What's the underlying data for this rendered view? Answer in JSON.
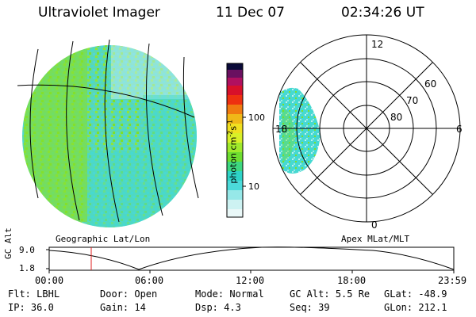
{
  "header": {
    "instrument": "Ultraviolet Imager",
    "date": "11 Dec 07",
    "time": "02:34:26 UT"
  },
  "colorbar": {
    "unit_label": "photon cm",
    "unit_sup1": "-2",
    "unit_mid": "s",
    "unit_sup2": "-1",
    "ticks": [
      "100",
      "10"
    ]
  },
  "left_map": {
    "label": "Geographic Lat/Lon"
  },
  "polar_map": {
    "label": "Apex MLat/MLT",
    "mlt_labels": [
      "12",
      "18",
      "6",
      "0"
    ],
    "mlat_labels": [
      "60",
      "70",
      "80"
    ]
  },
  "timeline": {
    "ylabel": "GC Alt",
    "yticks": [
      "9.0",
      "1.8"
    ],
    "xticks": [
      "00:00",
      "06:00",
      "12:00",
      "18:00",
      "23:59"
    ]
  },
  "status": {
    "row1": [
      {
        "key": "Flt:",
        "value": "LBHL"
      },
      {
        "key": "Door:",
        "value": "Open"
      },
      {
        "key": "Mode:",
        "value": "Normal"
      },
      {
        "key": "GC Alt:",
        "value": "5.5 Re"
      },
      {
        "key": "GLat:",
        "value": "-48.9"
      }
    ],
    "row2": [
      {
        "key": "IP:",
        "value": "36.0"
      },
      {
        "key": "Gain:",
        "value": "14"
      },
      {
        "key": "Dsp:",
        "value": "4.3"
      },
      {
        "key": "Seq:",
        "value": "39"
      },
      {
        "key": "GLon:",
        "value": "212.1"
      }
    ]
  },
  "colors": {
    "green": "#7fe02a",
    "cyan": "#46d9d2",
    "light_cyan": "#bfeff0",
    "time_marker": "#e02020"
  }
}
